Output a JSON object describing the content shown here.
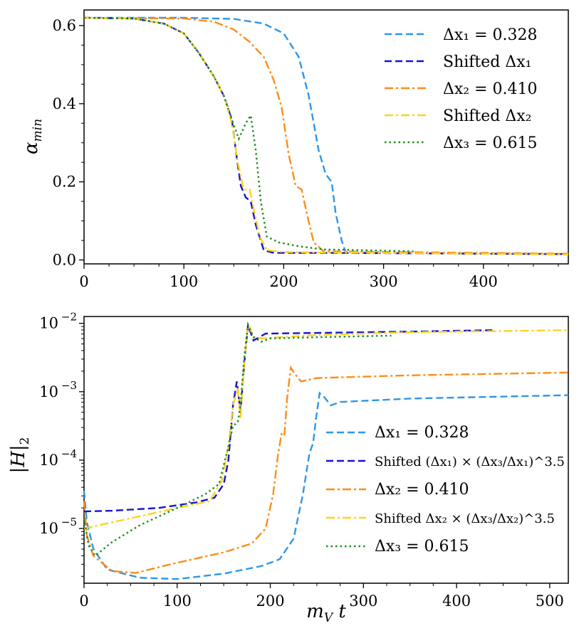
{
  "chart_data": [
    {
      "type": "line",
      "title": "",
      "xlabel": "",
      "ylabel": "α_min",
      "xlim": [
        0,
        485
      ],
      "ylim": [
        -0.01,
        0.64
      ],
      "xticks": [
        "0",
        "100",
        "200",
        "300",
        "400"
      ],
      "yticks": [
        "0.0",
        "0.2",
        "0.4",
        "0.6"
      ],
      "legend_position": "top-right",
      "series": [
        {
          "name": "Δx₁ = 0.328",
          "color": "#2d96e8",
          "dash": "dashed",
          "points": [
            [
              0,
              0.62
            ],
            [
              100,
              0.62
            ],
            [
              150,
              0.617
            ],
            [
              180,
              0.605
            ],
            [
              200,
              0.58
            ],
            [
              215,
              0.52
            ],
            [
              225,
              0.42
            ],
            [
              235,
              0.28
            ],
            [
              242,
              0.22
            ],
            [
              248,
              0.2
            ],
            [
              252,
              0.12
            ],
            [
              258,
              0.05
            ],
            [
              262,
              0.02
            ],
            [
              300,
              0.018
            ],
            [
              485,
              0.015
            ]
          ]
        },
        {
          "name": "Shifted Δx₁",
          "color": "#1414d2",
          "dash": "dashed",
          "points": [
            [
              0,
              0.62
            ],
            [
              50,
              0.618
            ],
            [
              80,
              0.605
            ],
            [
              100,
              0.58
            ],
            [
              115,
              0.53
            ],
            [
              130,
              0.47
            ],
            [
              140,
              0.42
            ],
            [
              148,
              0.36
            ],
            [
              152,
              0.28
            ],
            [
              157,
              0.19
            ],
            [
              162,
              0.16
            ],
            [
              167,
              0.15
            ],
            [
              172,
              0.09
            ],
            [
              180,
              0.025
            ],
            [
              190,
              0.018
            ],
            [
              250,
              0.018
            ],
            [
              485,
              0.015
            ]
          ]
        },
        {
          "name": "Δx₂ = 0.410",
          "color": "#ff8c16",
          "dash": "dashdot",
          "points": [
            [
              0,
              0.62
            ],
            [
              100,
              0.618
            ],
            [
              130,
              0.61
            ],
            [
              150,
              0.59
            ],
            [
              165,
              0.56
            ],
            [
              180,
              0.52
            ],
            [
              190,
              0.46
            ],
            [
              198,
              0.39
            ],
            [
              205,
              0.27
            ],
            [
              212,
              0.19
            ],
            [
              218,
              0.18
            ],
            [
              223,
              0.12
            ],
            [
              230,
              0.045
            ],
            [
              240,
              0.022
            ],
            [
              485,
              0.016
            ]
          ]
        },
        {
          "name": "Shifted Δx₂",
          "color": "#ffd21e",
          "dash": "dashdot",
          "points": [
            [
              0,
              0.62
            ],
            [
              50,
              0.618
            ],
            [
              80,
              0.605
            ],
            [
              100,
              0.58
            ],
            [
              115,
              0.53
            ],
            [
              130,
              0.47
            ],
            [
              140,
              0.42
            ],
            [
              148,
              0.35
            ],
            [
              154,
              0.25
            ],
            [
              160,
              0.18
            ],
            [
              166,
              0.18
            ],
            [
              170,
              0.13
            ],
            [
              176,
              0.06
            ],
            [
              183,
              0.025
            ],
            [
              200,
              0.02
            ],
            [
              485,
              0.014
            ]
          ]
        },
        {
          "name": "Δx₃ = 0.615",
          "color": "#1e8c1e",
          "dash": "dotted",
          "points": [
            [
              0,
              0.62
            ],
            [
              50,
              0.618
            ],
            [
              80,
              0.605
            ],
            [
              100,
              0.58
            ],
            [
              115,
              0.53
            ],
            [
              130,
              0.47
            ],
            [
              140,
              0.42
            ],
            [
              148,
              0.36
            ],
            [
              155,
              0.31
            ],
            [
              162,
              0.35
            ],
            [
              167,
              0.37
            ],
            [
              172,
              0.28
            ],
            [
              177,
              0.15
            ],
            [
              183,
              0.06
            ],
            [
              195,
              0.045
            ],
            [
              215,
              0.035
            ],
            [
              240,
              0.027
            ],
            [
              280,
              0.025
            ],
            [
              330,
              0.022
            ]
          ]
        }
      ]
    },
    {
      "type": "line",
      "title": "",
      "xlabel": "m_V t",
      "ylabel": "|H|₂",
      "xlim": [
        0,
        520
      ],
      "ylim_log10": [
        -5.8,
        -1.9
      ],
      "yscale": "log",
      "xticks": [
        "0",
        "100",
        "200",
        "300",
        "400",
        "500"
      ],
      "yticks": [
        "10",
        "10",
        "10",
        "10"
      ],
      "ytick_exponents": [
        "−5",
        "−4",
        "−3",
        "−2"
      ],
      "legend_position": "lower-right",
      "series": [
        {
          "name": "Δx₁ = 0.328",
          "color": "#2d96e8",
          "dash": "dashed",
          "points": [
            [
              0,
              -4.45
            ],
            [
              3,
              -4.9
            ],
            [
              10,
              -5.3
            ],
            [
              25,
              -5.6
            ],
            [
              60,
              -5.72
            ],
            [
              100,
              -5.74
            ],
            [
              150,
              -5.66
            ],
            [
              190,
              -5.55
            ],
            [
              210,
              -5.45
            ],
            [
              225,
              -5.15
            ],
            [
              235,
              -4.5
            ],
            [
              242,
              -3.9
            ],
            [
              246,
              -3.75
            ],
            [
              249,
              -3.4
            ],
            [
              253,
              -3.02
            ],
            [
              258,
              -3.08
            ],
            [
              265,
              -3.2
            ],
            [
              275,
              -3.15
            ],
            [
              350,
              -3.1
            ],
            [
              520,
              -3.05
            ]
          ]
        },
        {
          "name": "Shifted (Δx₁) × (Δx₃/Δx₁)^3.5",
          "color": "#1414d2",
          "dash": "dashed",
          "points": [
            [
              0,
              -4.75
            ],
            [
              30,
              -4.74
            ],
            [
              80,
              -4.7
            ],
            [
              120,
              -4.62
            ],
            [
              140,
              -4.55
            ],
            [
              150,
              -4.35
            ],
            [
              155,
              -4.0
            ],
            [
              160,
              -3.2
            ],
            [
              164,
              -2.85
            ],
            [
              168,
              -3.3
            ],
            [
              172,
              -2.6
            ],
            [
              176,
              -2.03
            ],
            [
              182,
              -2.25
            ],
            [
              195,
              -2.15
            ],
            [
              250,
              -2.14
            ],
            [
              350,
              -2.12
            ],
            [
              440,
              -2.1
            ]
          ]
        },
        {
          "name": "Δx₂ = 0.410",
          "color": "#ff8c16",
          "dash": "dashdot",
          "points": [
            [
              0,
              -4.6
            ],
            [
              3,
              -5.1
            ],
            [
              10,
              -5.4
            ],
            [
              30,
              -5.62
            ],
            [
              55,
              -5.65
            ],
            [
              100,
              -5.5
            ],
            [
              150,
              -5.35
            ],
            [
              180,
              -5.22
            ],
            [
              195,
              -5.0
            ],
            [
              203,
              -4.5
            ],
            [
              208,
              -3.95
            ],
            [
              212,
              -3.62
            ],
            [
              215,
              -3.65
            ],
            [
              218,
              -3.1
            ],
            [
              222,
              -2.65
            ],
            [
              227,
              -2.75
            ],
            [
              233,
              -2.85
            ],
            [
              250,
              -2.8
            ],
            [
              350,
              -2.76
            ],
            [
              520,
              -2.72
            ]
          ]
        },
        {
          "name": "Shifted Δx₂ × (Δx₃/Δx₂)^3.5",
          "color": "#ffd21e",
          "dash": "dashdot",
          "points": [
            [
              0,
              -5.0
            ],
            [
              50,
              -4.85
            ],
            [
              100,
              -4.7
            ],
            [
              135,
              -4.6
            ],
            [
              148,
              -4.3
            ],
            [
              155,
              -3.8
            ],
            [
              160,
              -3.2
            ],
            [
              165,
              -2.95
            ],
            [
              168,
              -3.4
            ],
            [
              172,
              -2.6
            ],
            [
              176,
              -2.0
            ],
            [
              182,
              -2.2
            ],
            [
              190,
              -2.22
            ],
            [
              250,
              -2.17
            ],
            [
              350,
              -2.13
            ],
            [
              520,
              -2.1
            ]
          ]
        },
        {
          "name": "Δx₃ = 0.615",
          "color": "#1e8c1e",
          "dash": "dotted",
          "points": [
            [
              0,
              -4.85
            ],
            [
              5,
              -5.25
            ],
            [
              12,
              -5.4
            ],
            [
              30,
              -5.2
            ],
            [
              60,
              -4.95
            ],
            [
              100,
              -4.7
            ],
            [
              130,
              -4.5
            ],
            [
              145,
              -4.35
            ],
            [
              155,
              -3.8
            ],
            [
              160,
              -3.5
            ],
            [
              165,
              -3.45
            ],
            [
              168,
              -3.2
            ],
            [
              172,
              -2.5
            ],
            [
              176,
              -2.02
            ],
            [
              182,
              -2.2
            ],
            [
              190,
              -2.27
            ],
            [
              200,
              -2.22
            ],
            [
              260,
              -2.2
            ],
            [
              330,
              -2.18
            ]
          ]
        }
      ]
    }
  ]
}
